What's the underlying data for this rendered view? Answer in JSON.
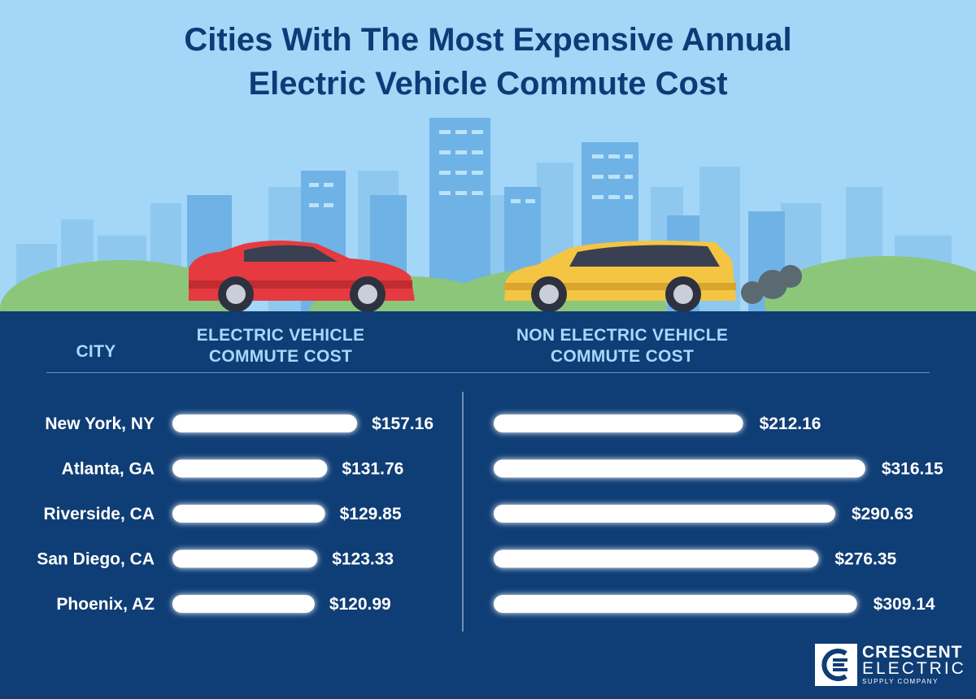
{
  "title_line1": "Cities With The Most Expensive Annual",
  "title_line2": "Electric Vehicle Commute Cost",
  "headers": {
    "city": "CITY",
    "ev_line1": "ELECTRIC VEHICLE",
    "ev_line2": "COMMUTE COST",
    "nev_line1": "NON ELECTRIC VEHICLE",
    "nev_line2": "COMMUTE COST"
  },
  "logo": {
    "word1": "CRESCENT",
    "word2": "ELECTRIC",
    "word3": "SUPPLY COMPANY"
  },
  "colors": {
    "sky": "#9fd3f5",
    "navy": "#0f3d75",
    "bar": "#ffffff",
    "bar_glow": "#7fd1ff",
    "ev_car": "#e53a3f",
    "gas_car": "#f4c443"
  },
  "chart_data": {
    "type": "bar",
    "orientation": "horizontal",
    "categories": [
      "New York, NY",
      "Atlanta, GA",
      "Riverside, CA",
      "San Diego, CA",
      "Phoenix, AZ"
    ],
    "series": [
      {
        "name": "ELECTRIC VEHICLE COMMUTE COST",
        "values": [
          157.16,
          131.76,
          129.85,
          123.33,
          120.99
        ],
        "labels": [
          "$157.16",
          "$131.76",
          "$129.85",
          "$123.33",
          "$120.99"
        ]
      },
      {
        "name": "NON ELECTRIC VEHICLE COMMUTE COST",
        "values": [
          212.16,
          316.15,
          290.63,
          276.35,
          309.14
        ],
        "labels": [
          "$212.16",
          "$316.15",
          "$290.63",
          "$276.35",
          "$309.14"
        ]
      }
    ],
    "grid": false,
    "legend": "none"
  }
}
